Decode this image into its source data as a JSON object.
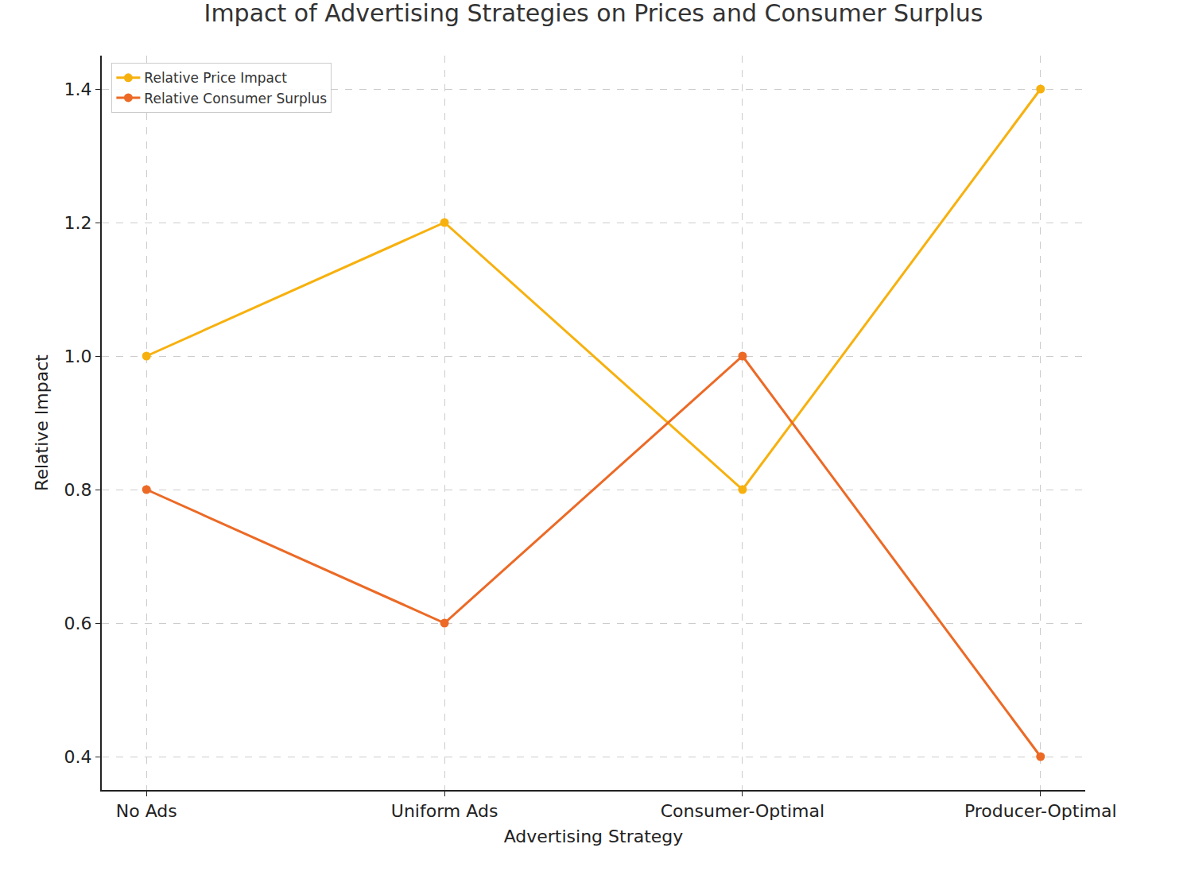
{
  "chart_data": {
    "type": "line",
    "title": "Impact of Advertising Strategies on Prices and Consumer Surplus",
    "x_label": "Advertising Strategy",
    "y_label": "Relative Impact",
    "categories": [
      "No Ads",
      "Uniform Ads",
      "Consumer-Optimal",
      "Producer-Optimal"
    ],
    "series": [
      {
        "name": "Relative Price Impact",
        "color": "#f7b10e",
        "values": [
          1.0,
          1.2,
          0.8,
          1.4
        ]
      },
      {
        "name": "Relative Consumer Surplus",
        "color": "#ec6a26",
        "values": [
          0.8,
          0.6,
          1.0,
          0.4
        ]
      }
    ],
    "ylim": [
      0.35,
      1.45
    ],
    "yticks": [
      0.4,
      0.6,
      0.8,
      {
        "value": 1.0,
        "label": "1.0"
      },
      1.2,
      1.4
    ],
    "grid": true,
    "legend": "upper left",
    "marker": "circle",
    "line_style": "solid"
  }
}
